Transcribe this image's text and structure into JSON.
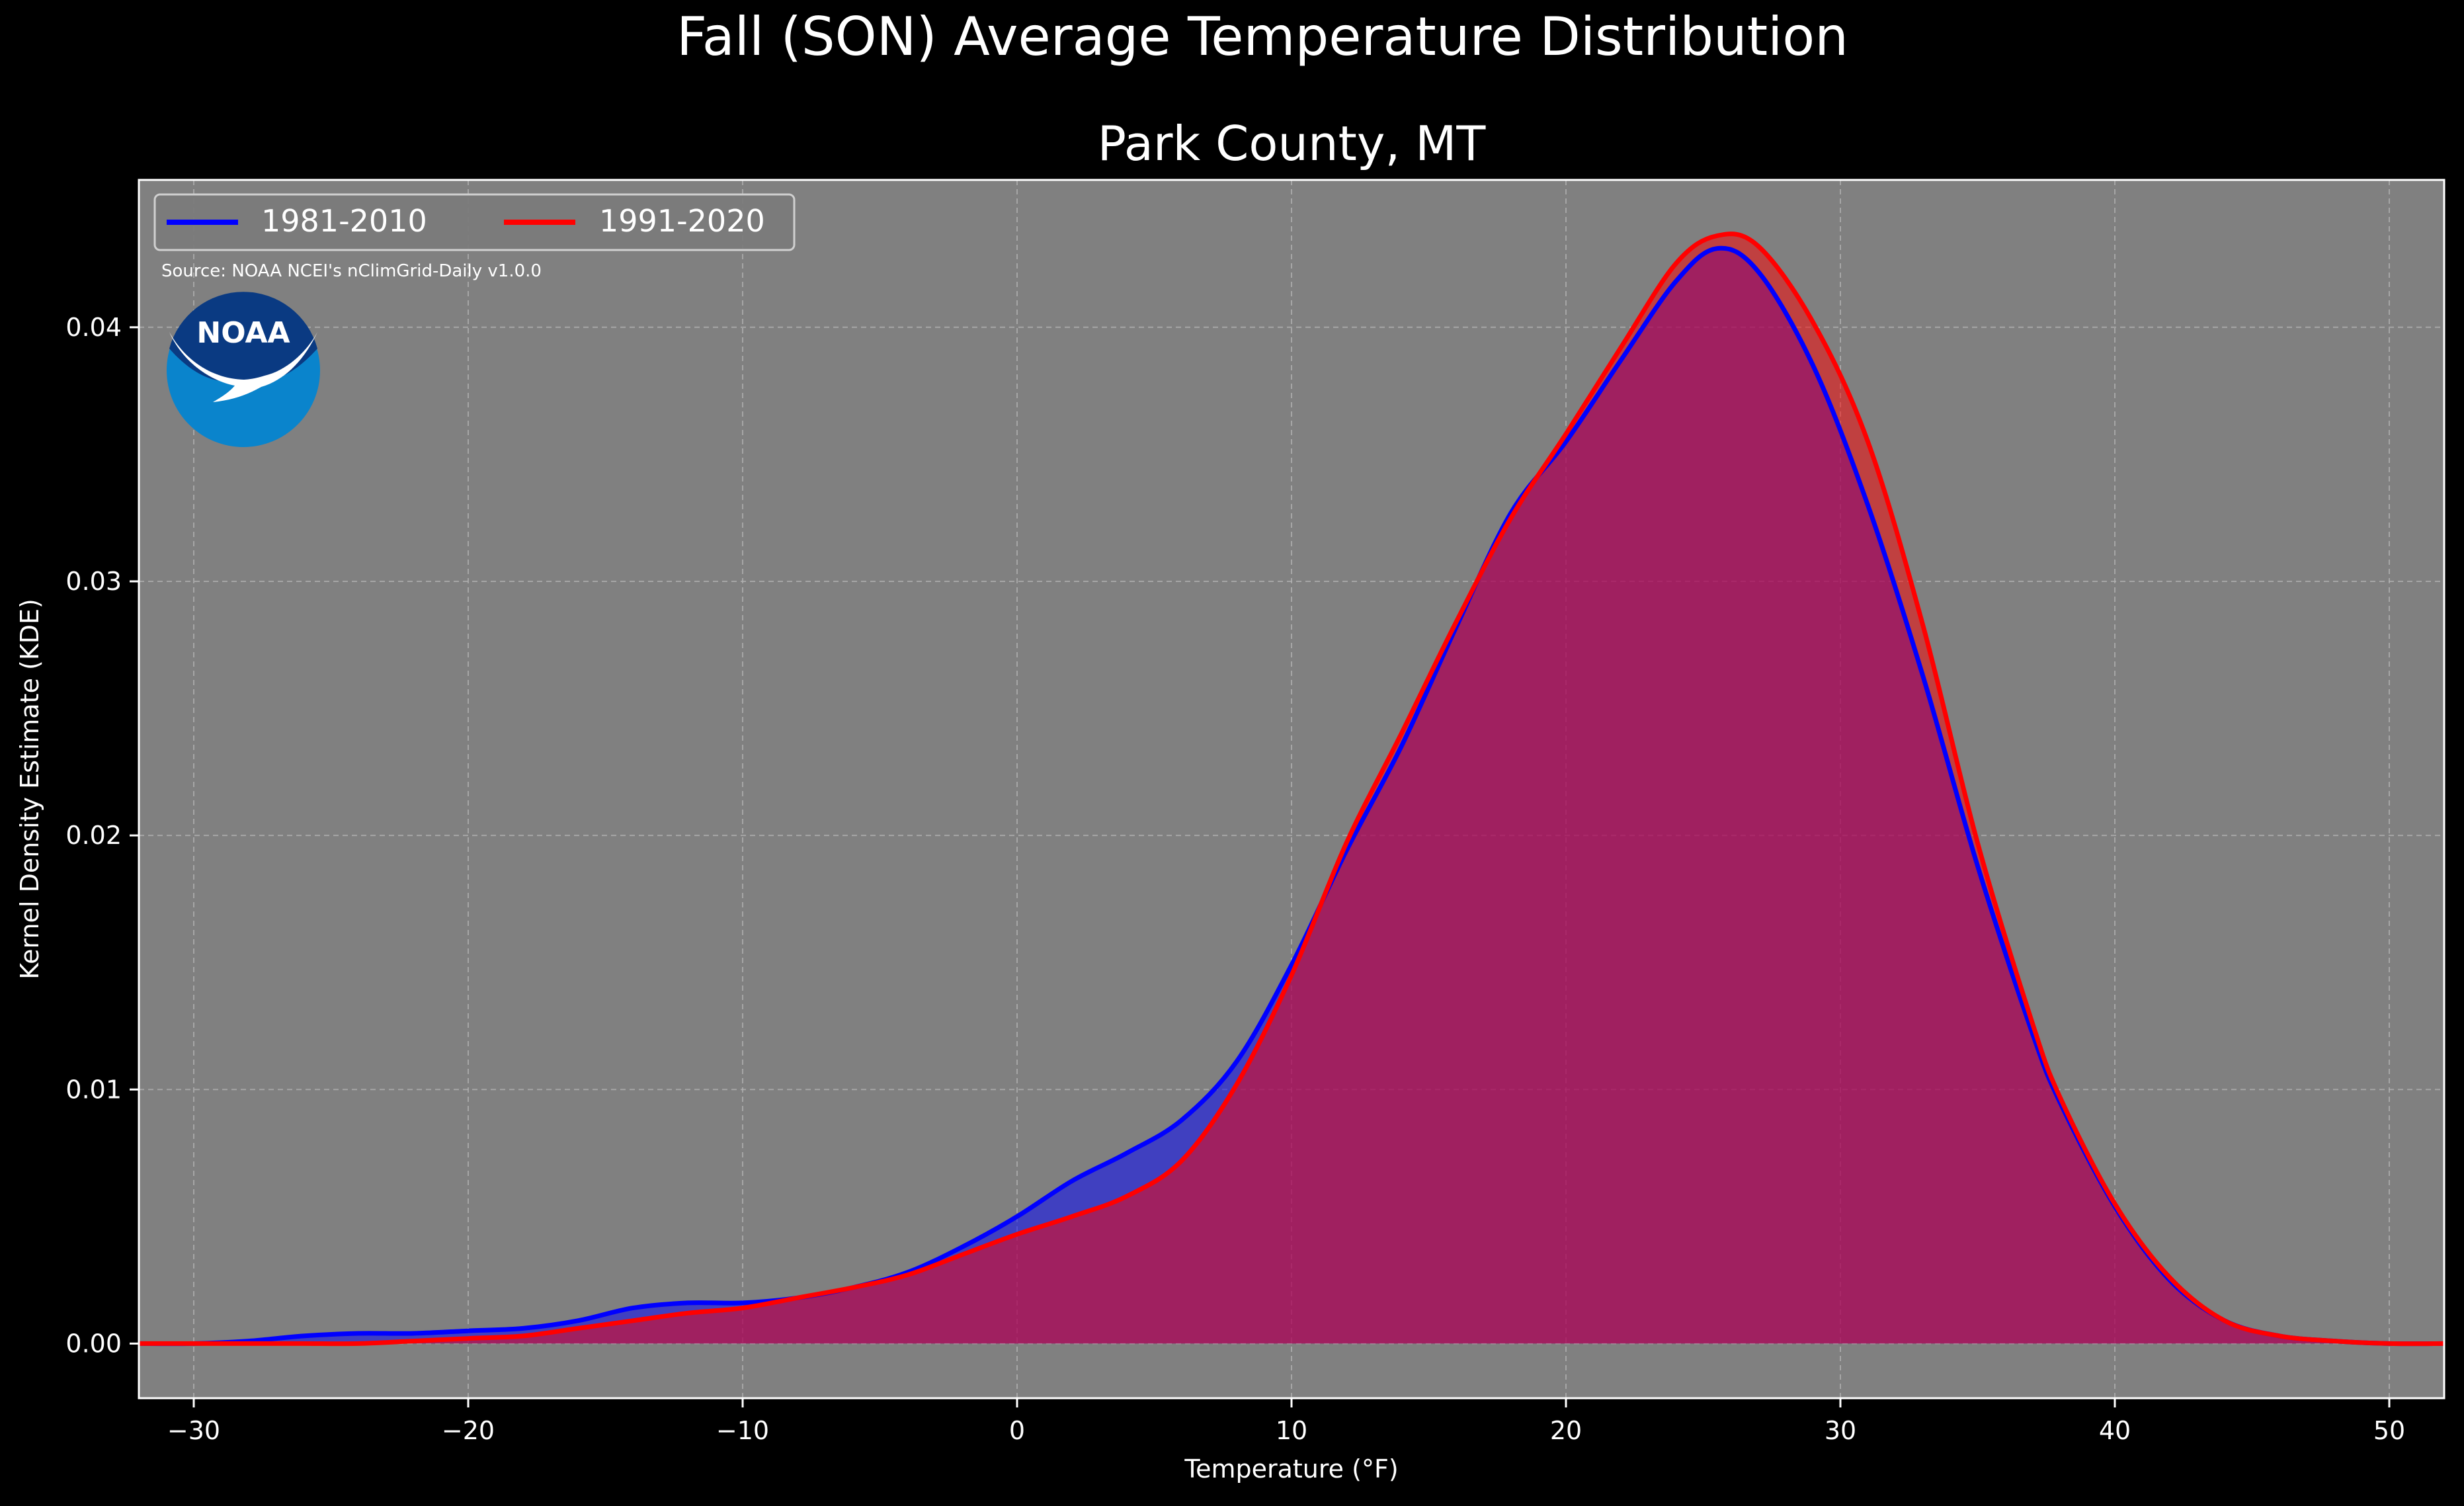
{
  "figure": {
    "suptitle": "Fall (SON) Average Temperature Distribution",
    "title": "Park County, MT",
    "source": "Source: NOAA NCEI's nClimGrid-Daily v1.0.0",
    "logo_text": "NOAA",
    "background": "#000000",
    "plot_background": "#808080"
  },
  "chart_data": {
    "type": "area",
    "xlabel": "Temperature ($^\\circ$F)",
    "xlabel_display": "Temperature (°F)",
    "ylabel": "Kernel Density Estimate (KDE)",
    "xlim": [
      -32,
      52
    ],
    "ylim": [
      -0.00215,
      0.0458
    ],
    "xticks": [
      -30,
      -20,
      -10,
      0,
      10,
      20,
      30,
      40,
      50
    ],
    "xtick_labels": [
      "−30",
      "−20",
      "−10",
      "0",
      "10",
      "20",
      "30",
      "40",
      "50"
    ],
    "yticks": [
      0.0,
      0.01,
      0.02,
      0.03,
      0.04
    ],
    "ytick_labels": [
      "0.00",
      "0.01",
      "0.02",
      "0.03",
      "0.04"
    ],
    "grid": true,
    "legend_placement": "upper-left",
    "series": [
      {
        "name": "1981-2010",
        "color": "#0000ff",
        "x": [
          -32,
          -30,
          -28,
          -26,
          -24,
          -22,
          -20,
          -18,
          -16,
          -14,
          -12,
          -10,
          -8,
          -6,
          -4,
          -2,
          0,
          2,
          4,
          6,
          8,
          10,
          12,
          14,
          16,
          18,
          20,
          22,
          24,
          25.5,
          27,
          29,
          31,
          33,
          35,
          37,
          38,
          40,
          42,
          44,
          46,
          48,
          50,
          52
        ],
        "values": [
          0.0,
          0.0,
          0.0001,
          0.0003,
          0.0004,
          0.0004,
          0.0005,
          0.0006,
          0.0009,
          0.0014,
          0.0016,
          0.0016,
          0.0018,
          0.0022,
          0.0028,
          0.0038,
          0.005,
          0.0064,
          0.0075,
          0.0088,
          0.0111,
          0.0149,
          0.0194,
          0.0235,
          0.0282,
          0.0327,
          0.0355,
          0.0387,
          0.0418,
          0.0431,
          0.0422,
          0.0385,
          0.033,
          0.0263,
          0.0188,
          0.0122,
          0.0095,
          0.0054,
          0.0025,
          0.0009,
          0.0003,
          0.0001,
          0.0,
          0.0
        ]
      },
      {
        "name": "1991-2020",
        "color": "#ff0000",
        "x": [
          -32,
          -30,
          -28,
          -26,
          -24,
          -22,
          -20,
          -18,
          -16,
          -14,
          -12,
          -10,
          -8,
          -6,
          -4,
          -2,
          0,
          2,
          4,
          6,
          8,
          10,
          12,
          14,
          16,
          18,
          20,
          22,
          24,
          25.5,
          27,
          29,
          31,
          33,
          35,
          37,
          38,
          40,
          42,
          44,
          46,
          48,
          50,
          52
        ],
        "values": [
          0.0,
          0.0,
          0.0,
          0.0,
          0.0,
          0.0001,
          0.0002,
          0.0003,
          0.0006,
          0.0009,
          0.0012,
          0.0014,
          0.0018,
          0.0022,
          0.0027,
          0.0035,
          0.0043,
          0.005,
          0.0058,
          0.0072,
          0.0102,
          0.0145,
          0.0197,
          0.024,
          0.0284,
          0.0325,
          0.0358,
          0.0392,
          0.0425,
          0.0436,
          0.0432,
          0.0402,
          0.0355,
          0.0283,
          0.0197,
          0.0126,
          0.0097,
          0.0055,
          0.0026,
          0.0009,
          0.0003,
          0.0001,
          0.0,
          0.0
        ]
      }
    ]
  }
}
